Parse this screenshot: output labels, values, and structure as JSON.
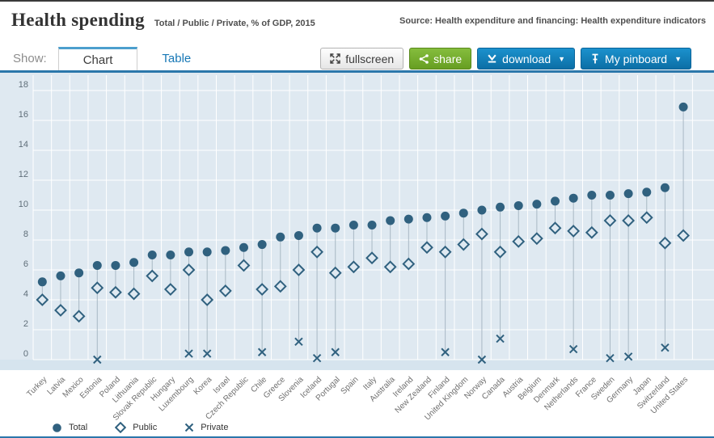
{
  "header": {
    "title": "Health spending",
    "subtitle": "Total / Public / Private, % of GDP, 2015",
    "source": "Source: Health expenditure and financing: Health expenditure indicators"
  },
  "toolbar": {
    "show_label": "Show:",
    "tabs": [
      {
        "label": "Chart",
        "active": true
      },
      {
        "label": "Table",
        "active": false
      }
    ],
    "buttons": {
      "fullscreen": "fullscreen",
      "share": "share",
      "download": "download",
      "pinboard": "My pinboard"
    }
  },
  "legend": [
    {
      "label": "Total",
      "marker": "circle-icon"
    },
    {
      "label": "Public",
      "marker": "diamond-icon"
    },
    {
      "label": "Private",
      "marker": "x-icon"
    }
  ],
  "colors": {
    "marker": "#30617f",
    "plot_bg": "#dfe9f1",
    "plot_bg_strip": "#d6e4ee",
    "gridline": "#ffffff",
    "connector": "#a8b8c4",
    "accent_blue": "#2b77ab",
    "button_green": "#679e22",
    "button_blue": "#0c6fa6"
  },
  "chart_data": {
    "type": "scatter",
    "title": "Health spending",
    "subtitle": "Total / Public / Private, % of GDP, 2015",
    "ylabel": "% of GDP",
    "ylim": [
      0,
      18
    ],
    "yticks": [
      0,
      2,
      4,
      6,
      8,
      10,
      12,
      14,
      16,
      18
    ],
    "grid": true,
    "legend_position": "bottom-left",
    "categories": [
      "Turkey",
      "Latvia",
      "Mexico",
      "Estonia",
      "Poland",
      "Lithuania",
      "Slovak Republic",
      "Hungary",
      "Luxembourg",
      "Korea",
      "Israel",
      "Czech Republic",
      "Chile",
      "Greece",
      "Slovenia",
      "Iceland",
      "Portugal",
      "Spain",
      "Italy",
      "Australia",
      "Ireland",
      "New Zealand",
      "Finland",
      "United Kingdom",
      "Norway",
      "Canada",
      "Austria",
      "Belgium",
      "Denmark",
      "Netherlands",
      "France",
      "Sweden",
      "Germany",
      "Japan",
      "Switzerland",
      "United States"
    ],
    "series": [
      {
        "name": "Total",
        "marker": "circle",
        "values": [
          5.2,
          5.6,
          5.8,
          6.3,
          6.3,
          6.5,
          7.0,
          7.0,
          7.2,
          7.2,
          7.3,
          7.5,
          7.7,
          8.2,
          8.3,
          8.8,
          8.8,
          9.0,
          9.0,
          9.3,
          9.4,
          9.5,
          9.6,
          9.8,
          10.0,
          10.2,
          10.3,
          10.4,
          10.6,
          10.8,
          11.0,
          11.0,
          11.1,
          11.2,
          11.5,
          16.9
        ]
      },
      {
        "name": "Public",
        "marker": "diamond",
        "values": [
          4.0,
          3.3,
          2.9,
          4.8,
          4.5,
          4.4,
          5.6,
          4.7,
          6.0,
          4.0,
          4.6,
          6.3,
          4.7,
          4.9,
          6.0,
          7.2,
          5.8,
          6.2,
          6.8,
          6.2,
          6.4,
          7.5,
          7.2,
          7.7,
          8.4,
          7.2,
          7.9,
          8.1,
          8.8,
          8.6,
          8.5,
          9.3,
          9.3,
          9.5,
          7.8,
          8.3
        ]
      },
      {
        "name": "Private",
        "marker": "x",
        "values": [
          null,
          null,
          null,
          0.0,
          null,
          null,
          null,
          null,
          0.4,
          0.4,
          null,
          null,
          0.5,
          null,
          1.2,
          0.1,
          0.5,
          null,
          null,
          null,
          null,
          null,
          0.5,
          null,
          0.0,
          1.4,
          null,
          null,
          null,
          0.7,
          null,
          0.1,
          0.2,
          null,
          0.8,
          null
        ]
      }
    ]
  }
}
